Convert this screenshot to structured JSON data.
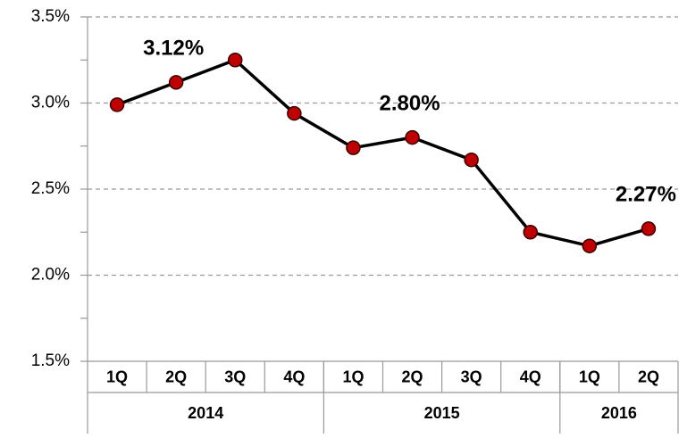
{
  "chart_data": {
    "type": "line",
    "categories": [
      "1Q",
      "2Q",
      "3Q",
      "4Q",
      "1Q",
      "2Q",
      "3Q",
      "4Q",
      "1Q",
      "2Q"
    ],
    "category_groups": [
      {
        "name": "2014",
        "size": 4
      },
      {
        "name": "2015",
        "size": 4
      },
      {
        "name": "2016",
        "size": 2
      }
    ],
    "values": [
      2.99,
      3.12,
      3.25,
      2.94,
      2.74,
      2.8,
      2.67,
      2.25,
      2.17,
      2.27
    ],
    "value_labels": [
      null,
      "3.12%",
      null,
      null,
      null,
      "2.80%",
      null,
      null,
      null,
      "2.27%"
    ],
    "color": "#000000",
    "marker_color": "#c00000",
    "ylim": [
      1.5,
      3.5
    ],
    "yticks": [
      {
        "value": 1.5,
        "label": "1.5%"
      },
      {
        "value": 2.0,
        "label": "2.0%"
      },
      {
        "value": 2.5,
        "label": "2.5%"
      },
      {
        "value": 3.0,
        "label": "3.0%"
      },
      {
        "value": 3.5,
        "label": "3.5%"
      }
    ],
    "minor_yticks": [
      1.75,
      2.25,
      2.75,
      3.25
    ],
    "grid": true
  }
}
